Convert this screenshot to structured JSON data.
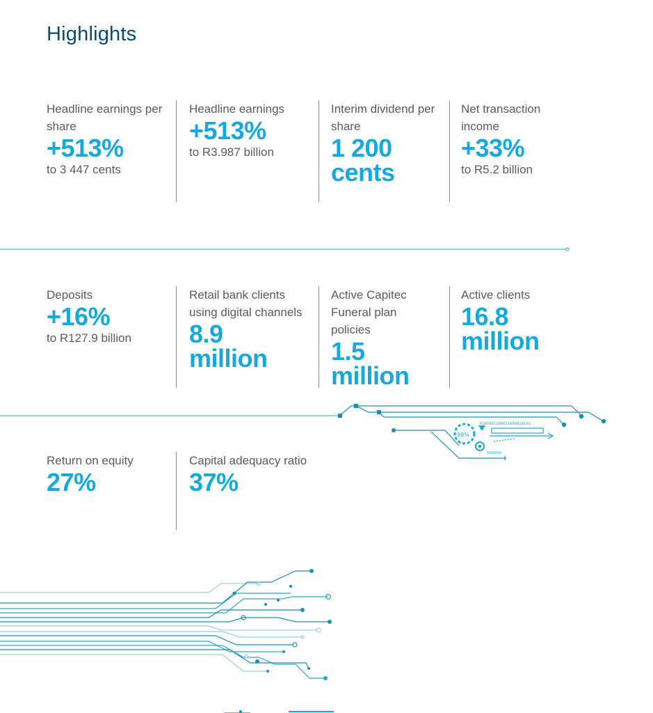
{
  "page": {
    "title": "Highlights"
  },
  "rows": [
    [
      {
        "label": "Headline earnings per share",
        "value": "+513%",
        "sub": "to 3 447 cents"
      },
      {
        "label": "Headline earnings",
        "value": "+513%",
        "sub": "to R3.987 billion"
      },
      {
        "label": "Interim dividend per share",
        "value": "1 200 cents",
        "sub": ""
      },
      {
        "label": "Net transaction income",
        "value": "+33%",
        "sub": "to R5.2 billion"
      }
    ],
    [
      {
        "label": "Deposits",
        "value": "+16%",
        "sub": "to R127.9 billion"
      },
      {
        "label": "Retail bank clients using digital channels",
        "value": "8.9 million",
        "sub": ""
      },
      {
        "label": "Active Capitec Funeral plan policies",
        "value": "1.5 million",
        "sub": ""
      },
      {
        "label": "Active clients",
        "value": "16.8 million",
        "sub": ""
      }
    ],
    [
      {
        "label": "Return on equity",
        "value": "27%",
        "sub": ""
      },
      {
        "label": "Capital adequacy ratio",
        "value": "37%",
        "sub": ""
      }
    ]
  ],
  "decor": {
    "percent_readout": "99%",
    "binary_readout": "0101001100011000010101",
    "small_readout": "0101010",
    "accent": "#18a8dc",
    "dark_accent": "#1b8fb3"
  }
}
